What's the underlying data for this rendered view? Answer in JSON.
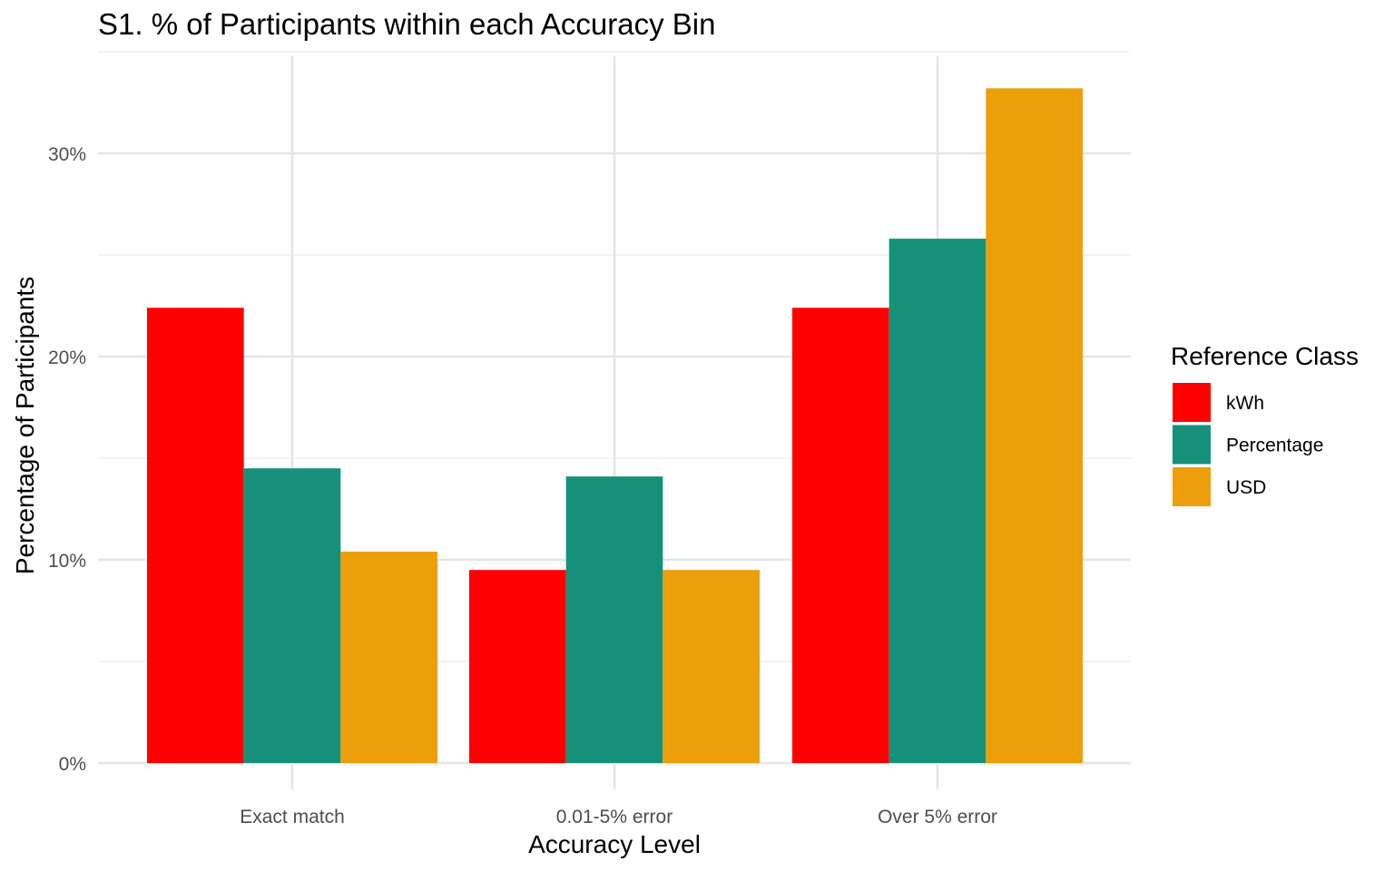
{
  "chart_data": {
    "type": "bar",
    "title": "S1. % of Participants within each Accuracy Bin",
    "xlabel": "Accuracy Level",
    "ylabel": "Percentage of Participants",
    "categories": [
      "Exact match",
      "0.01-5% error",
      "Over 5% error"
    ],
    "series": [
      {
        "name": "kWh",
        "color": "#FF0000",
        "values": [
          22.4,
          9.5,
          22.4
        ]
      },
      {
        "name": "Percentage",
        "color": "#15917A",
        "values": [
          14.5,
          14.1,
          25.8
        ]
      },
      {
        "name": "USD",
        "color": "#EC9F0A",
        "values": [
          10.4,
          9.5,
          33.2
        ]
      }
    ],
    "ylim": [
      0,
      35
    ],
    "yticks": [
      0,
      10,
      20,
      30
    ],
    "ytick_labels": [
      "0%",
      "10%",
      "20%",
      "30%"
    ],
    "grid": true,
    "legend": {
      "title": "Reference Class",
      "position": "right"
    }
  }
}
